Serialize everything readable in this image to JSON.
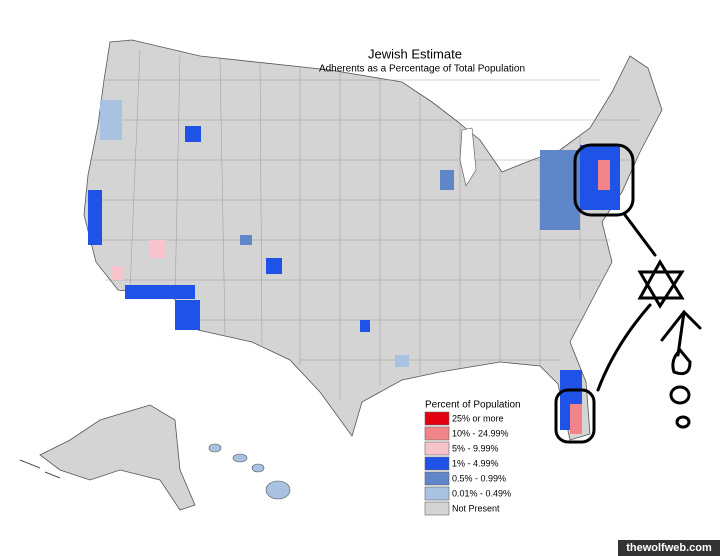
{
  "title": "Jewish Estimate",
  "subtitle": "Adherents as a Percentage of Total Population",
  "legend": {
    "title": "Percent of Population",
    "items": [
      {
        "label": "25% or more",
        "color": "#e00010"
      },
      {
        "label": "10% - 24.99%",
        "color": "#f08488"
      },
      {
        "label": "5% - 9.99%",
        "color": "#f8c4cc"
      },
      {
        "label": "1% - 4.99%",
        "color": "#1f52e6"
      },
      {
        "label": "0.5% - 0.99%",
        "color": "#5f86c8"
      },
      {
        "label": "0.01% - 0.49%",
        "color": "#a9c2e2"
      },
      {
        "label": "Not Present",
        "color": "#d4d4d4"
      }
    ]
  },
  "watermark": "thewolfweb.com"
}
